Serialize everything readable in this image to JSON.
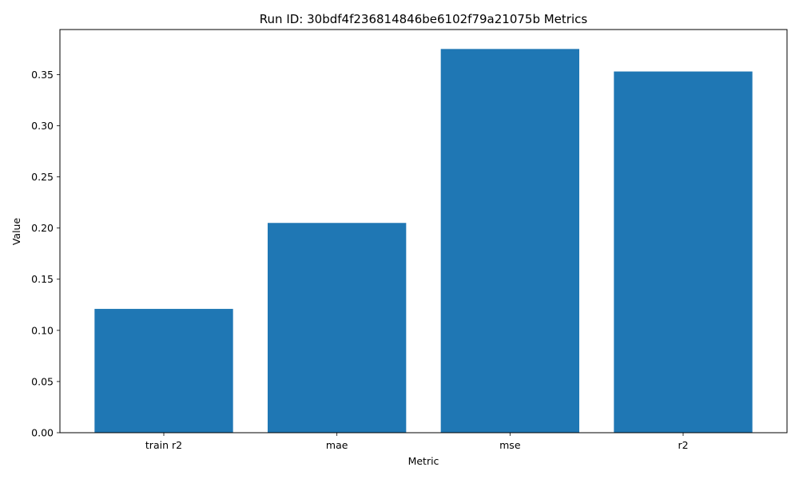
{
  "chart_data": {
    "type": "bar",
    "title": "Run ID: 30bdf4f236814846be6102f79a21075b Metrics",
    "xlabel": "Metric",
    "ylabel": "Value",
    "categories": [
      "train r2",
      "mae",
      "mse",
      "r2"
    ],
    "values": [
      0.121,
      0.205,
      0.375,
      0.353
    ],
    "ylim": [
      0,
      0.394
    ],
    "yticks": [
      "0.00",
      "0.05",
      "0.10",
      "0.15",
      "0.20",
      "0.25",
      "0.30",
      "0.35"
    ],
    "grid": false,
    "legend": "none",
    "bar_color": "#1f77b4"
  }
}
